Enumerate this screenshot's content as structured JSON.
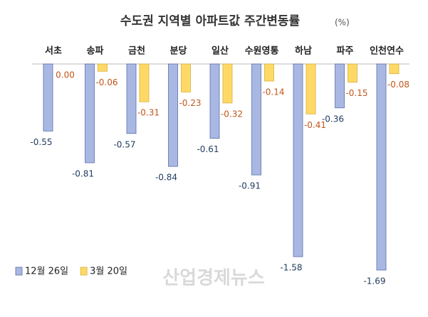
{
  "chart_data": {
    "type": "bar",
    "title": "수도권 지역별 아파트값 주간변동률",
    "subtitle": "(%)",
    "watermark": "산업경제뉴스",
    "categories": [
      "서초",
      "송파",
      "금천",
      "분당",
      "일산",
      "수원영통",
      "하남",
      "파주",
      "인천연수"
    ],
    "series": [
      {
        "name": "12월 26일",
        "color": "#a9b8e3",
        "values": [
          -0.55,
          -0.81,
          -0.57,
          -0.84,
          -0.61,
          -0.91,
          -1.58,
          -0.36,
          -1.69
        ],
        "value_labels": [
          "-0.55",
          "-0.81",
          "-0.57",
          "-0.84",
          "-0.61",
          "-0.91",
          "-1.58",
          "-0.36",
          "-1.69"
        ]
      },
      {
        "name": "3월 20일",
        "color": "#ffd966",
        "values": [
          0,
          -0.06,
          -0.31,
          -0.23,
          -0.32,
          -0.14,
          -0.41,
          -0.15,
          -0.08
        ],
        "value_labels": [
          "0.00",
          "-0.06",
          "-0.31",
          "-0.23",
          "-0.32",
          "-0.14",
          "-0.41",
          "-0.15",
          "-0.08"
        ]
      }
    ],
    "legend": "bottom-left"
  }
}
